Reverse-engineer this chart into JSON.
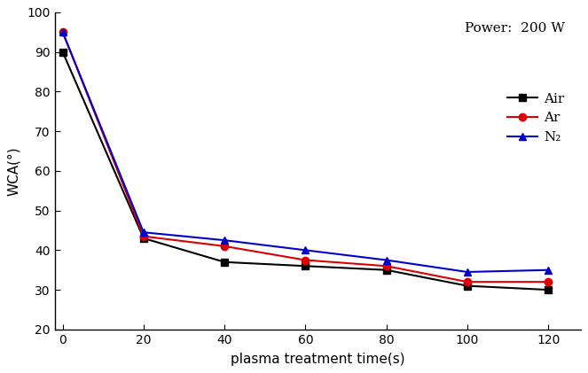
{
  "x": [
    0,
    20,
    40,
    60,
    80,
    100,
    120
  ],
  "air_y": [
    90,
    43,
    37,
    36,
    35,
    31,
    30
  ],
  "ar_y": [
    95,
    43.5,
    41,
    37.5,
    36,
    32,
    32
  ],
  "n2_y": [
    95,
    44.5,
    42.5,
    40,
    37.5,
    34.5,
    35
  ],
  "air_color": "#000000",
  "ar_color": "#dd0000",
  "n2_color": "#0000cc",
  "xlabel": "plasma treatment time(s)",
  "ylabel": "WCA(°)",
  "power_text": "Power:  200 W",
  "legend_labels": [
    "Air",
    "Ar",
    "N₂"
  ],
  "ylim": [
    20,
    100
  ],
  "xlim": [
    -2,
    128
  ],
  "yticks": [
    20,
    30,
    40,
    50,
    60,
    70,
    80,
    90,
    100
  ],
  "xticks": [
    0,
    20,
    40,
    60,
    80,
    100,
    120
  ],
  "linewidth": 1.5,
  "markersize": 6,
  "figsize": [
    6.63,
    4.21
  ],
  "dpi": 100
}
